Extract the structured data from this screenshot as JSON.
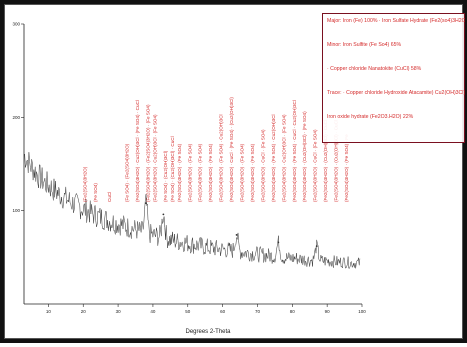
{
  "chart_data": {
    "type": "line",
    "xlabel": "Degrees 2-Theta",
    "ylabel": "",
    "xlim": [
      3,
      100
    ],
    "ylim": [
      0,
      300
    ],
    "x_ticks": [
      10,
      20,
      30,
      40,
      50,
      60,
      70,
      80,
      90,
      100
    ],
    "y_ticks": [
      100,
      200,
      300
    ],
    "series": [
      {
        "x": [
          3,
          5,
          7,
          9,
          11,
          13,
          15,
          17,
          19,
          21,
          23,
          25,
          27,
          29,
          31,
          33,
          35,
          37,
          39,
          41,
          43,
          45,
          47,
          49,
          51,
          53,
          55,
          57,
          59,
          61,
          63,
          65,
          67,
          69,
          71,
          73,
          75,
          77,
          79,
          81,
          83,
          85,
          87,
          89,
          91,
          93,
          95,
          97,
          99
        ],
        "y": [
          160,
          148,
          138,
          130,
          124,
          118,
          113,
          108,
          104,
          100,
          96,
          93,
          90,
          87,
          85,
          82,
          80,
          77,
          75,
          73,
          71,
          69,
          67,
          66,
          64,
          63,
          61,
          60,
          59,
          58,
          57,
          56,
          55,
          54,
          53,
          52,
          51,
          50,
          49,
          49,
          48,
          47,
          47,
          46,
          46,
          45,
          45,
          44,
          44
        ]
      }
    ],
    "peaks": [
      {
        "x": 38,
        "y": 108
      },
      {
        "x": 43,
        "y": 96
      },
      {
        "x": 64,
        "y": 74
      },
      {
        "x": 76,
        "y": 66
      },
      {
        "x": 87,
        "y": 62
      }
    ],
    "annotations": [
      {
        "x": 21,
        "text": "(Fe2(SO4)3H2O)"
      },
      {
        "x": 24,
        "text": "(Fe SO4)"
      },
      {
        "x": 28,
        "text": "CuCl"
      },
      {
        "x": 33,
        "text": "(Fe SO4) · (Fe2(SO4)3H2O)"
      },
      {
        "x": 36,
        "text": "(Fe2(SO4)3H2O) · Cu2(OH)3Cl · (Fe SO4) · CuCl"
      },
      {
        "x": 39,
        "text": "(Fe2(SO4)3H2O) · (Fe2(SO4)3H2O) · (Fe SO4)"
      },
      {
        "x": 41,
        "text": "(Fe2(SO4)3H2O) · Cu2(OH)3Cl · (Fe SO4)"
      },
      {
        "x": 44,
        "text": "(Fe SO4) · (Cu2(OH)3Cl)"
      },
      {
        "x": 46,
        "text": "(Fe SO4) · (Cu2(OH)3Cl) · CuCl"
      },
      {
        "x": 48,
        "text": "(Fe2(SO4)3H2O) · (Fe SO4)"
      },
      {
        "x": 51,
        "text": "(Fe2(SO4)3H2O) · (Fe SO4)"
      },
      {
        "x": 54,
        "text": "(Fe2(SO4)3H2O) · (Fe SO4)"
      },
      {
        "x": 57,
        "text": "(Fe2(SO4)3H2O) · (Fe SO4)"
      },
      {
        "x": 60,
        "text": "(Fe2(SO4)3H2O) · (Fe SO4) · Cu2(OH)3Cl"
      },
      {
        "x": 63,
        "text": "(Fe2(SO4)3H2O) · CuCl · (Fe SO4) · (Cu2(OH)3Cl)"
      },
      {
        "x": 66,
        "text": "(Fe2(SO4)3H2O) · (Fe SO4)"
      },
      {
        "x": 69,
        "text": "(Fe2(SO4)3H2O) · (Fe SO4)"
      },
      {
        "x": 72,
        "text": "(Fe2(SO4)3H2O) · CuCl · (Fe SO4)"
      },
      {
        "x": 75,
        "text": "(Fe2(SO4)3H2O) · (Fe SO4) · Cu2(OH)3Cl"
      },
      {
        "x": 78,
        "text": "(Fe2(SO4)3H2O) · Cu2(OH)3Cl · (Fe SO4)"
      },
      {
        "x": 81,
        "text": "(Fe2(SO4)3H2O) · (Fe SO4) · CuCl · Cu2(OH)3Cl"
      },
      {
        "x": 84,
        "text": "(Fe2(SO4)3H2O) · (Cu2(OH)3Cl) · (Fe SO4)"
      },
      {
        "x": 87,
        "text": "(Fe2(SO4)3H2O) · CuCl · (Fe SO4)"
      },
      {
        "x": 90,
        "text": "(Fe2(SO4)3H2O) · (Cu2(OH)3Cl) · CuCl"
      },
      {
        "x": 93,
        "text": "(Fe2(SO4)3H2O) · (Cu2(OH)3Cl) · CuCl"
      },
      {
        "x": 96,
        "text": "(Fe2(SO4)3H2O) · (Fe SO4) · Fe"
      }
    ],
    "legend": [
      "Major: Iron (Fe) 100% · Iron Sulfate Hydrate (Fe2(so4)3H2O) 80%",
      "Minor: Iron Sulfite (Fe So4) 65%",
      "· Copper chloride Nanatokite (CuCl) 58%",
      "Trace: · Copper chloride Hydroxide Atacamite) Cu2(OH)3Cl) 27%",
      "Iron oxide hydrate (Fe2O3.H2O) 22%"
    ],
    "legend_position": "top-right",
    "grid": false
  },
  "colors": {
    "trace": "#333333",
    "annotation": "#d42a2a",
    "legend_border": "#7a1020",
    "axis": "#222222"
  }
}
